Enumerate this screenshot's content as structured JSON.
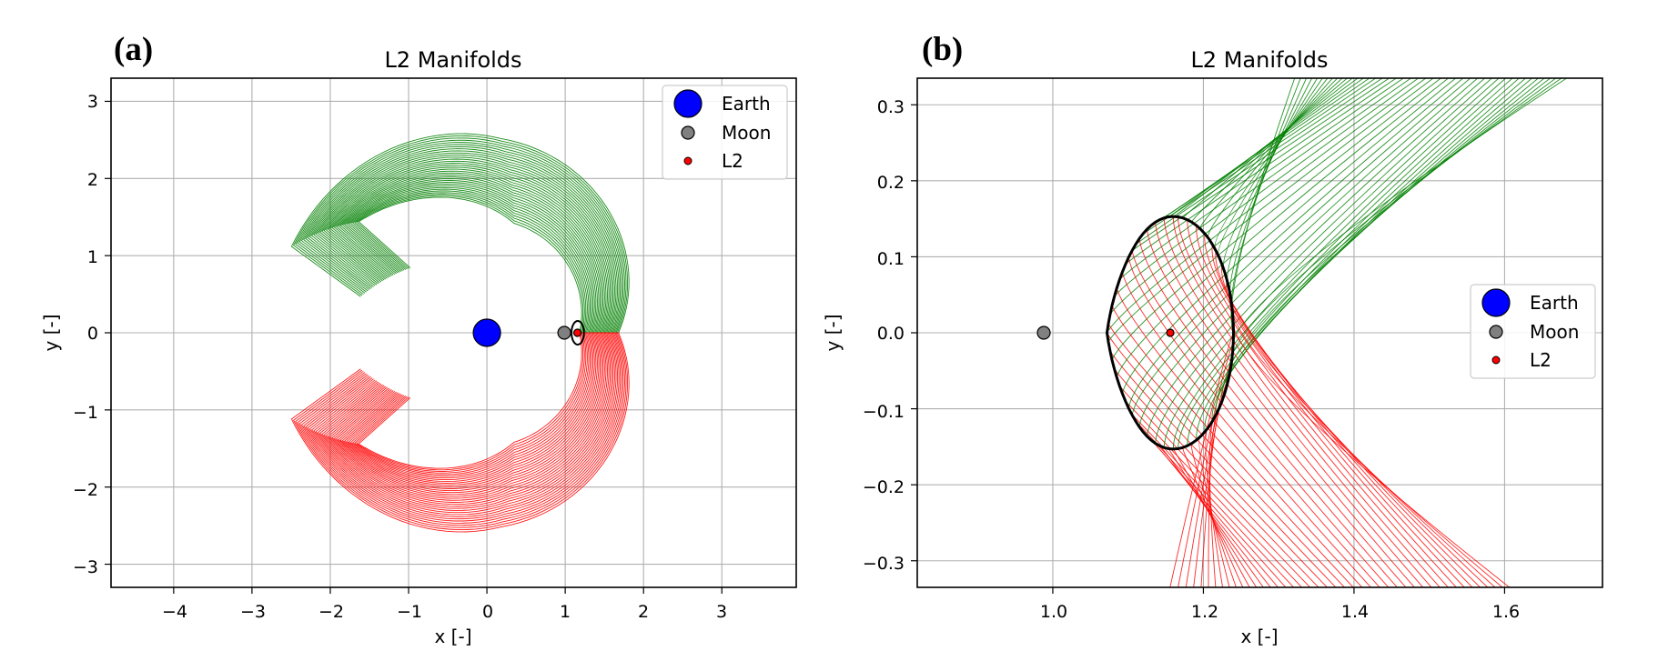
{
  "panels": [
    {
      "label": "(a)",
      "title": "L2 Manifolds",
      "xlabel": "x [-]",
      "ylabel": "y [-]",
      "x_ticks": [
        "−4",
        "−3",
        "−2",
        "−1",
        "0",
        "1",
        "2",
        "3"
      ],
      "y_ticks": [
        "−3",
        "−2",
        "−1",
        "0",
        "1",
        "2",
        "3"
      ],
      "legend": [
        "Earth",
        "Moon",
        "L2"
      ]
    },
    {
      "label": "(b)",
      "title": "L2 Manifolds",
      "xlabel": "x [-]",
      "ylabel": "y [-]",
      "x_ticks": [
        "1.0",
        "1.2",
        "1.4",
        "1.6"
      ],
      "y_ticks": [
        "−0.3",
        "−0.2",
        "−0.1",
        "0.0",
        "0.1",
        "0.2",
        "0.3"
      ],
      "legend": [
        "Earth",
        "Moon",
        "L2"
      ]
    }
  ],
  "colors": {
    "earth": "#0000ff",
    "moon": "#808080",
    "l2": "#ff0000",
    "stable_manifold": "#008000",
    "unstable_manifold": "#ff0000",
    "orbit": "#000000",
    "grid": "#b0b0b0"
  },
  "chart_data": [
    {
      "type": "scatter",
      "title": "L2 Manifolds",
      "xlabel": "x [-]",
      "ylabel": "y [-]",
      "xlim": [
        -4.8,
        3.95
      ],
      "ylim": [
        -3.3,
        3.3
      ],
      "x_ticks": [
        -4,
        -3,
        -2,
        -1,
        0,
        1,
        2,
        3
      ],
      "y_ticks": [
        -3,
        -2,
        -1,
        0,
        1,
        2,
        3
      ],
      "grid": true,
      "legend_position": "top-right",
      "points": [
        {
          "name": "Earth",
          "x": 0.0,
          "y": 0.0
        },
        {
          "name": "Moon",
          "x": 0.988,
          "y": 0.0
        },
        {
          "name": "L2",
          "x": 1.156,
          "y": 0.0
        }
      ],
      "manifold_families": [
        {
          "color": "green",
          "description": "upper family from L2 halo orbit, arcing to about x=-2.5, y=2.3"
        },
        {
          "color": "red",
          "description": "lower family mirrored below the x-axis, arcing to about x=-2.5, y=-2.3"
        }
      ]
    },
    {
      "type": "scatter",
      "title": "L2 Manifolds",
      "xlabel": "x [-]",
      "ylabel": "y [-]",
      "xlim": [
        0.82,
        1.73
      ],
      "ylim": [
        -0.335,
        0.335
      ],
      "x_ticks": [
        1.0,
        1.2,
        1.4,
        1.6
      ],
      "y_ticks": [
        -0.3,
        -0.2,
        -0.1,
        0.0,
        0.1,
        0.2,
        0.3
      ],
      "grid": true,
      "legend_position": "center-right",
      "points": [
        {
          "name": "Moon",
          "x": 0.988,
          "y": 0.0
        },
        {
          "name": "L2",
          "x": 1.156,
          "y": 0.0
        }
      ],
      "orbit_extent": {
        "x_min": 1.08,
        "x_max": 1.24,
        "y_min": -0.153,
        "y_max": 0.153
      }
    }
  ]
}
